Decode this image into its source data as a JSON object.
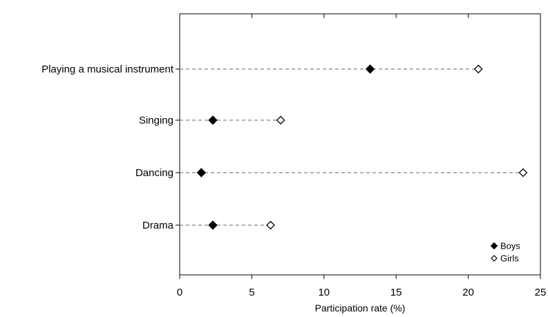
{
  "chart_data": {
    "type": "scatter",
    "orientation": "horizontal",
    "title": "",
    "xlabel": "Participation rate (%)",
    "ylabel": "",
    "xlim": [
      0,
      25
    ],
    "xticks": [
      "0",
      "5",
      "10",
      "15",
      "20",
      "25"
    ],
    "categories": [
      "Playing a musical instrument",
      "Singing",
      "Dancing",
      "Drama"
    ],
    "series": [
      {
        "name": "Boys",
        "marker": "filled-diamond",
        "values": [
          13.2,
          2.3,
          1.5,
          2.3
        ]
      },
      {
        "name": "Girls",
        "marker": "open-diamond",
        "values": [
          20.7,
          7.0,
          23.8,
          6.3
        ]
      }
    ],
    "connector": "dashed",
    "grid": false,
    "legend_position": "bottom-right",
    "colors": {
      "marker": "#000000",
      "connector": "#666666",
      "axis": "#000000"
    }
  }
}
